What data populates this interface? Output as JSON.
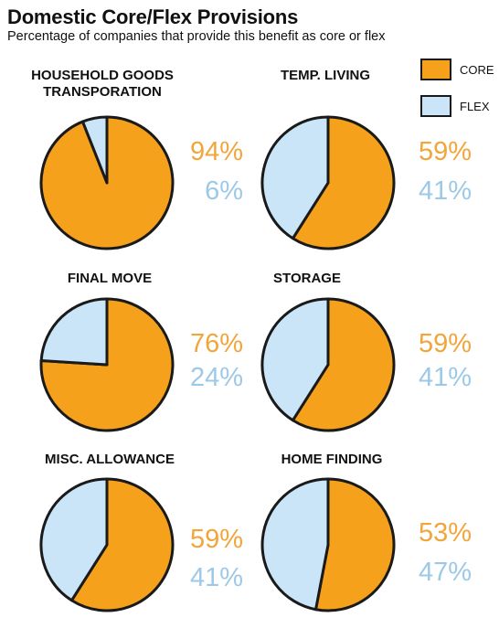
{
  "title": "Domestic Core/Flex Provisions",
  "subtitle": "Percentage of companies that provide this benefit as core or flex",
  "colors": {
    "core": "#F5A11C",
    "flex": "#C9E5F7",
    "core_text": "#F2A53A",
    "flex_text": "#9DC9E8",
    "outline": "#1a1a1a"
  },
  "legend": {
    "core_label": "CORE",
    "flex_label": "FLEX"
  },
  "chart_data": {
    "type": "pie",
    "title": "Domestic Core/Flex Provisions",
    "subtitle": "Percentage of companies that provide this benefit as core or flex",
    "legend": [
      "CORE",
      "FLEX"
    ],
    "legend_placement": "top-right",
    "pies": [
      {
        "title": "HOUSEHOLD GOODS\nTRANSPORATION",
        "core": 94,
        "flex": 6,
        "core_label": "94%",
        "flex_label": "6%"
      },
      {
        "title": "TEMP. LIVING",
        "core": 59,
        "flex": 41,
        "core_label": "59%",
        "flex_label": "41%"
      },
      {
        "title": "FINAL MOVE",
        "core": 76,
        "flex": 24,
        "core_label": "76%",
        "flex_label": "24%"
      },
      {
        "title": "STORAGE",
        "core": 59,
        "flex": 41,
        "core_label": "59%",
        "flex_label": "41%"
      },
      {
        "title": "MISC. ALLOWANCE",
        "core": 59,
        "flex": 41,
        "core_label": "59%",
        "flex_label": "41%"
      },
      {
        "title": "HOME FINDING",
        "core": 53,
        "flex": 47,
        "core_label": "53%",
        "flex_label": "47%"
      }
    ]
  }
}
